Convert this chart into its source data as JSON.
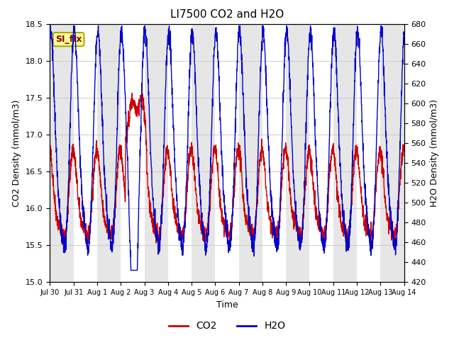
{
  "title": "LI7500 CO2 and H2O",
  "xlabel": "Time",
  "ylabel_left": "CO2 Density (mmol/m3)",
  "ylabel_right": "H2O Density (mmol/m3)",
  "co2_ylim": [
    15.0,
    18.5
  ],
  "h2o_ylim": [
    420,
    680
  ],
  "co2_yticks": [
    15.0,
    15.5,
    16.0,
    16.5,
    17.0,
    17.5,
    18.0,
    18.5
  ],
  "h2o_yticks": [
    420,
    440,
    460,
    480,
    500,
    520,
    540,
    560,
    580,
    600,
    620,
    640,
    660,
    680
  ],
  "xtick_labels": [
    "Jul 30",
    "Jul 31",
    "Aug 1",
    "Aug 2",
    "Aug 3",
    "Aug 4",
    "Aug 5",
    "Aug 6",
    "Aug 7",
    "Aug 8",
    "Aug 9",
    "Aug 10",
    "Aug 11",
    "Aug 12",
    "Aug 13",
    "Aug 14"
  ],
  "co2_color": "#cc0000",
  "h2o_color": "#0000cc",
  "line_width": 1.0,
  "legend_co2": "CO2",
  "legend_h2o": "H2O",
  "annotation_text": "SI_flx",
  "annotation_bg": "#ffff99",
  "annotation_border": "#aaaa00",
  "grid_color": "#cccccc",
  "band_color": "#e0e0e0",
  "band_alpha": 0.8,
  "n_days": 15,
  "points_per_day": 144,
  "seed": 42
}
